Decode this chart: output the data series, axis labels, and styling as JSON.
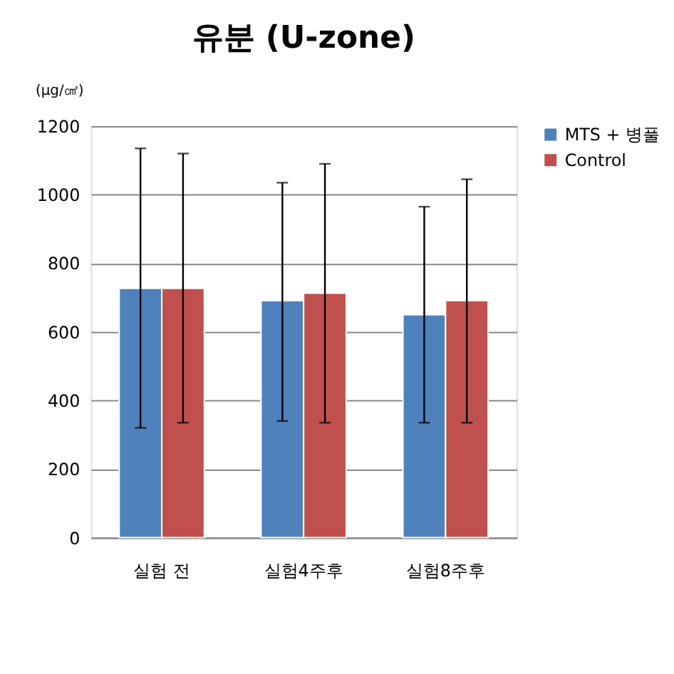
{
  "chart_data": {
    "type": "bar",
    "title": "유분 (U-zone)",
    "ylabel": "(μg/㎠)",
    "categories": [
      "실험 전",
      "실험4주후",
      "실험8주후"
    ],
    "series": [
      {
        "name": "MTS + 병풀",
        "color": "#4f81bd",
        "values": [
          727,
          691,
          650
        ],
        "errors": [
          [
            320,
            1135
          ],
          [
            340,
            1035
          ],
          [
            335,
            965
          ]
        ]
      },
      {
        "name": "Control",
        "color": "#c0504d",
        "values": [
          727,
          713,
          691
        ],
        "errors": [
          [
            335,
            1120
          ],
          [
            335,
            1090
          ],
          [
            335,
            1045
          ]
        ]
      }
    ],
    "ylim": [
      0,
      1200
    ],
    "yticks": [
      0,
      200,
      400,
      600,
      800,
      1000,
      1200
    ],
    "grid": "y",
    "legend": "right"
  }
}
